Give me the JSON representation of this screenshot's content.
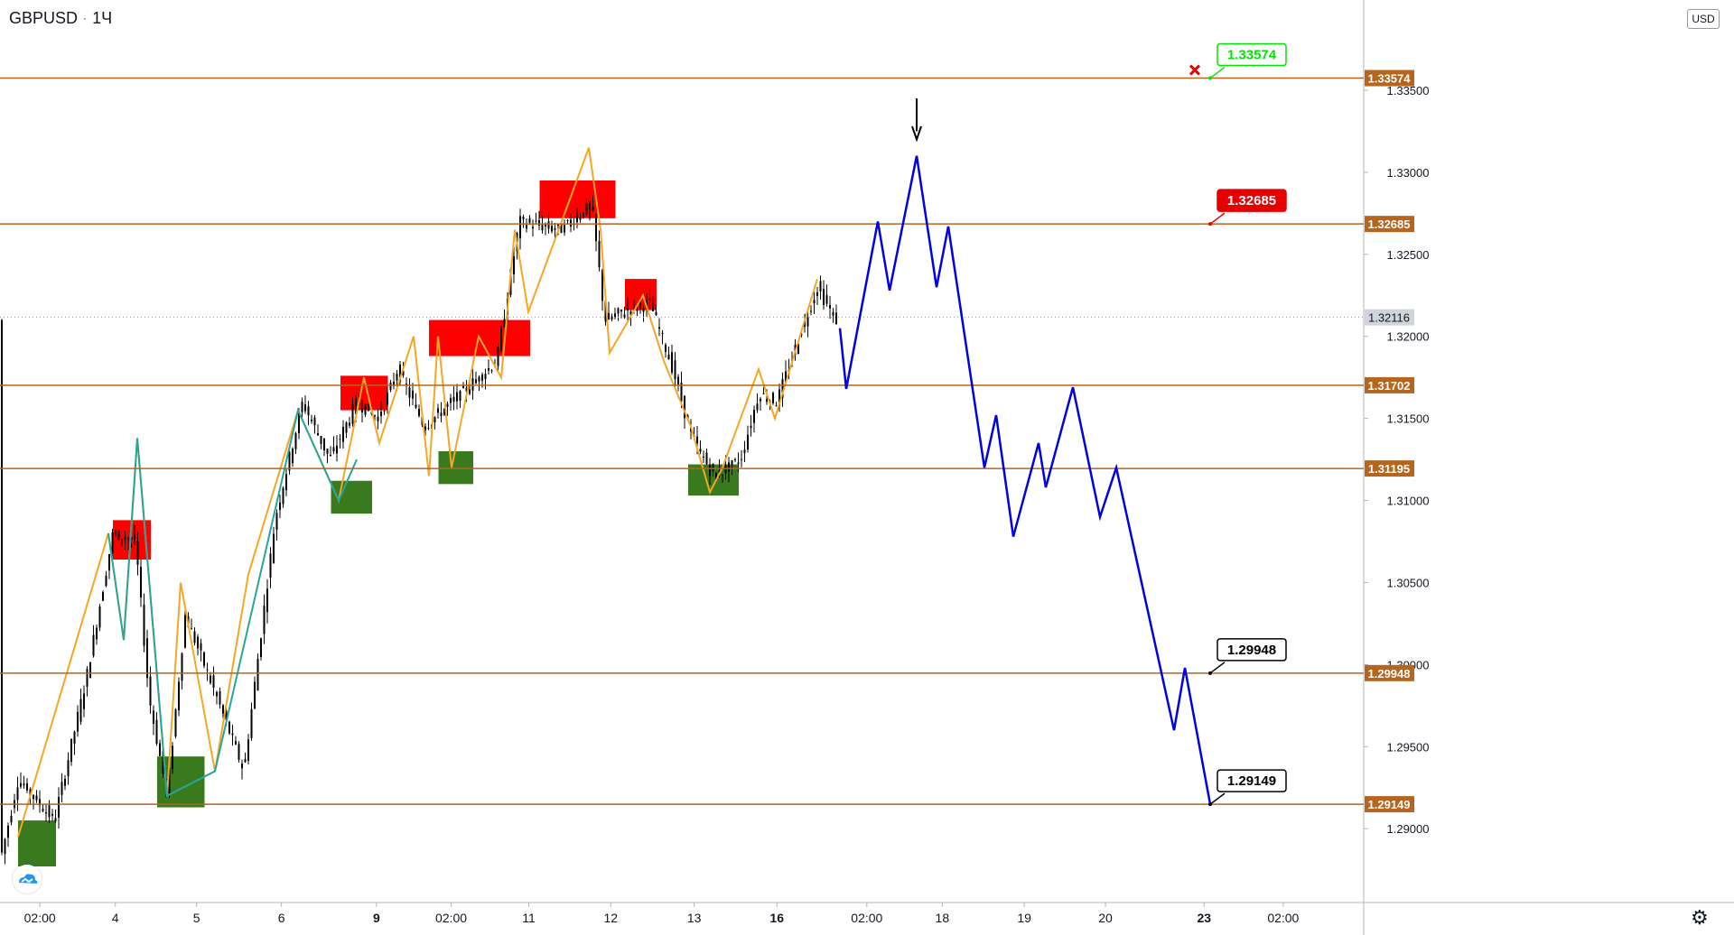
{
  "header": {
    "symbol": "GBPUSD",
    "separator": "·",
    "interval": "1Ч",
    "currency": "USD"
  },
  "colors": {
    "level_line": "#b5651d",
    "level_label_bg": "#b5651d",
    "supply_zone": "#ff0000",
    "demand_zone": "#3a7a1e",
    "zigzag_up": "#f5a623",
    "zigzag_down": "#26a69a",
    "forecast": "#0000e6",
    "candles": "#000000",
    "target_green": "#00e600",
    "stop_red": "#e60000"
  },
  "icons": {
    "logo": "tradingview-cloud-icon",
    "settings": "gear-icon",
    "stop_mark": "cross-icon",
    "arrow": "arrow-down-icon"
  },
  "chart_data": {
    "type": "candlestick",
    "symbol": "GBPUSD",
    "interval": "1Ч",
    "ylim": [
      1.2855,
      1.3405
    ],
    "y_ticks": [
      "1.29000",
      "1.29500",
      "1.30000",
      "1.30500",
      "1.31000",
      "1.31500",
      "1.32000",
      "1.32500",
      "1.33000",
      "1.33500"
    ],
    "x_ticks": [
      "02:00",
      "4",
      "5",
      "6",
      "9",
      "02:00",
      "11",
      "12",
      "13",
      "16",
      "02:00",
      "18",
      "19",
      "20",
      "23",
      "02:00"
    ],
    "levels": [
      {
        "price": "1.33574",
        "value": 1.33574
      },
      {
        "price": "1.32685",
        "value": 1.32685
      },
      {
        "price": "1.31702",
        "value": 1.31702
      },
      {
        "price": "1.31195",
        "value": 1.31195
      },
      {
        "price": "1.29948",
        "value": 1.29948
      },
      {
        "price": "1.29149",
        "value": 1.29149
      }
    ],
    "last_price": {
      "label": "1.32116",
      "value": 1.32116
    },
    "callouts": [
      {
        "label": "1.33574",
        "value": 1.33574,
        "kind": "target"
      },
      {
        "label": "1.32685",
        "value": 1.32685,
        "kind": "stop"
      },
      {
        "label": "1.29948",
        "value": 1.29948,
        "kind": "target"
      },
      {
        "label": "1.29149",
        "value": 1.29149,
        "kind": "target"
      }
    ],
    "supply_zones": [
      {
        "from": "4 08:00",
        "to": "4 20:00",
        "top": 1.3088,
        "bottom": 1.3064
      },
      {
        "from": "8 08:00",
        "to": "8 23:00",
        "top": 1.3176,
        "bottom": 1.3155
      },
      {
        "from": "9 12:00",
        "to": "10 20:00",
        "top": 1.321,
        "bottom": 1.3188
      },
      {
        "from": "10 23:00",
        "to": "11 23:00",
        "top": 1.3295,
        "bottom": 1.3272
      },
      {
        "from": "12 02:00",
        "to": "12 12:00",
        "top": 1.3235,
        "bottom": 1.3216
      }
    ],
    "demand_zones": [
      {
        "from": "3 00:00",
        "to": "3 12:00",
        "top": 1.2905,
        "bottom": 1.2877
      },
      {
        "from": "4 22:00",
        "to": "5 13:00",
        "top": 1.2944,
        "bottom": 1.2913
      },
      {
        "from": "8 05:00",
        "to": "8 18:00",
        "top": 1.3112,
        "bottom": 1.3092
      },
      {
        "from": "9 15:00",
        "to": "10 02:00",
        "top": 1.313,
        "bottom": 1.311
      },
      {
        "from": "12 22:00",
        "to": "13 14:00",
        "top": 1.3122,
        "bottom": 1.3103
      }
    ],
    "forecast_path": [
      1.3205,
      1.3168,
      1.327,
      1.3228,
      1.331,
      1.323,
      1.3267,
      1.312,
      1.3152,
      1.3078,
      1.3135,
      1.3108,
      1.3169,
      1.309,
      1.312,
      1.296,
      1.2998,
      1.29149
    ]
  }
}
